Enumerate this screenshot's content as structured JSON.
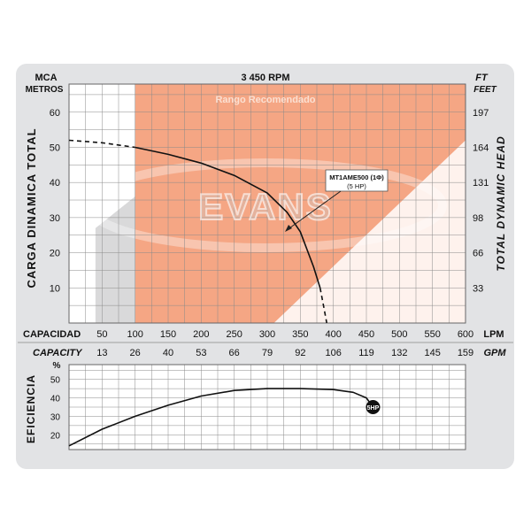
{
  "chart_data": [
    {
      "type": "line",
      "header": {
        "left_unit": "MCA",
        "left_unit2": "METROS",
        "rpm": "3 450 RPM",
        "right_unit": "FT",
        "right_unit2": "FEET"
      },
      "ylabel_left": "CARGA DINAMICA TOTAL",
      "ylabel_right": "TOTAL DYNAMIC HEAD",
      "yticks_left": [
        "10",
        "20",
        "30",
        "40",
        "50",
        "60"
      ],
      "yticks_right": [
        "33",
        "66",
        "98",
        "131",
        "164",
        "197"
      ],
      "ylim": [
        0,
        68
      ],
      "xlim_lpm": [
        0,
        600
      ],
      "x_row1_label": "CAPACIDAD",
      "x_row1_ticks": [
        "50",
        "100",
        "150",
        "200",
        "250",
        "300",
        "350",
        "400",
        "450",
        "500",
        "550",
        "600"
      ],
      "x_row1_unit": "LPM",
      "x_row2_label": "CAPACITY",
      "x_row2_ticks": [
        "13",
        "26",
        "40",
        "53",
        "66",
        "79",
        "92",
        "106",
        "119",
        "132",
        "145",
        "159"
      ],
      "x_row2_unit": "GPM",
      "recommended_range": {
        "label": "Rango Recomendado",
        "x_from_lpm": 100,
        "x_to_lpm": 600
      },
      "watermark": "EVANS",
      "annotation": {
        "line1": "MT1AME500 (1Φ)",
        "line2": "(5 HP)"
      },
      "series": [
        {
          "name": "MT1AME500",
          "solid": [
            [
              100,
              50
            ],
            [
              150,
              48
            ],
            [
              200,
              45.5
            ],
            [
              250,
              42
            ],
            [
              300,
              37
            ],
            [
              330,
              31.5
            ],
            [
              350,
              26
            ],
            [
              370,
              16
            ],
            [
              380,
              10
            ]
          ],
          "dashed_start": [
            [
              0,
              52
            ],
            [
              50,
              51.3
            ],
            [
              100,
              50
            ]
          ],
          "dashed_end": [
            [
              380,
              10
            ],
            [
              385,
              5
            ],
            [
              390,
              0
            ]
          ]
        }
      ]
    },
    {
      "type": "line",
      "ylabel": "EFICIENCIA",
      "yunit": "%",
      "yticks": [
        "20",
        "30",
        "40",
        "50"
      ],
      "ylim": [
        12,
        58
      ],
      "series": [
        {
          "name": "",
          "points": [
            [
              0,
              14
            ],
            [
              50,
              23
            ],
            [
              100,
              30
            ],
            [
              150,
              36
            ],
            [
              200,
              41
            ],
            [
              250,
              44
            ],
            [
              300,
              45
            ],
            [
              350,
              45
            ],
            [
              400,
              44.5
            ],
            [
              430,
              43
            ],
            [
              450,
              40
            ],
            [
              460,
              35
            ]
          ]
        }
      ],
      "end_marker": "5HP"
    }
  ]
}
